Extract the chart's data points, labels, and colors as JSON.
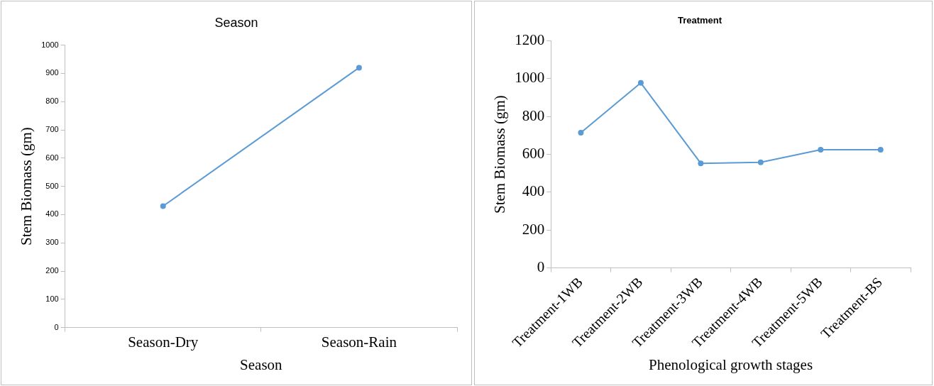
{
  "chart_data": [
    {
      "type": "line",
      "title": "Season",
      "xlabel": "Season",
      "ylabel": "Stem Biomass (gm)",
      "categories": [
        "Season-Dry",
        "Season-Rain"
      ],
      "values": [
        430,
        920
      ],
      "color": "#5b9bd5",
      "ylim": [
        0,
        1000
      ],
      "yticks": [
        0,
        100,
        200,
        300,
        400,
        500,
        600,
        700,
        800,
        900,
        1000
      ],
      "marker": "circle",
      "grid": false,
      "legend": false
    },
    {
      "type": "line",
      "title": "Treatment",
      "xlabel": "Phenological growth stages",
      "ylabel": "Stem Biomass (gm)",
      "categories": [
        "Treatment-1WB",
        "Treatment-2WB",
        "Treatment-3WB",
        "Treatment-4WB",
        "Treatment-5WB",
        "Treatment-BS"
      ],
      "values": [
        715,
        978,
        553,
        558,
        625,
        625
      ],
      "color": "#5b9bd5",
      "ylim": [
        0,
        1200
      ],
      "yticks": [
        0,
        200,
        400,
        600,
        800,
        1000,
        1200
      ],
      "marker": "circle",
      "grid": false,
      "legend": false
    }
  ]
}
